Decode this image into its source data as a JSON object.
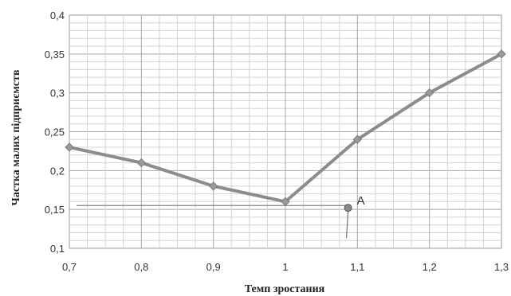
{
  "chart_data": {
    "type": "line",
    "xlabel": "Темп зростания",
    "ylabel": "Частка малих підприємств",
    "xlim": [
      0.7,
      1.3
    ],
    "ylim": [
      0.1,
      0.4
    ],
    "x_ticks": [
      "0,7",
      "0,8",
      "0,9",
      "1",
      "1,1",
      "1,2",
      "1,3"
    ],
    "y_ticks": [
      "0,1",
      "0,15",
      "0,2",
      "0,25",
      "0,3",
      "0,35",
      "0,4"
    ],
    "grid": true,
    "legend": "none",
    "series": [
      {
        "x": [
          0.7,
          0.8,
          0.9,
          1.0,
          1.1,
          1.2,
          1.3
        ],
        "y": [
          0.23,
          0.21,
          0.18,
          0.16,
          0.24,
          0.3,
          0.35
        ],
        "color": "#8c8c8c",
        "marker": "diamond"
      }
    ],
    "reference_line": {
      "y": 0.155,
      "x_from": 0.71,
      "x_to": 1.085
    },
    "annotation": {
      "label": "A",
      "x": 1.087,
      "y": 0.152
    }
  }
}
